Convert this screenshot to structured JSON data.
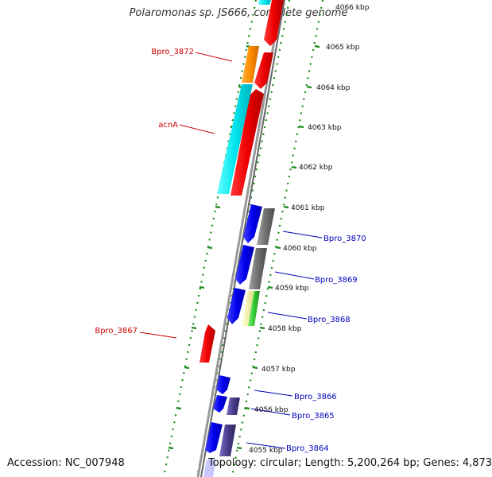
{
  "title": "Polaromonas sp. JS666, complete genome",
  "accession": "Accession: NC_007948",
  "summary": "Topology: circular; Length: 5,200,264 bp; Genes: 4,873",
  "ticks": [
    "4066 kbp",
    "4065 kbp",
    "4064 kbp",
    "4063 kbp",
    "4062 kbp",
    "4061 kbp",
    "4060 kbp",
    "4059 kbp",
    "4058 kbp",
    "4057 kbp",
    "4056 kbp",
    "4055 kbp"
  ],
  "gene_labels_left": [
    "Bpro_3872",
    "acnA",
    "Bpro_3867"
  ],
  "gene_labels_right": [
    "Bpro_3870",
    "Bpro_3869",
    "Bpro_3868",
    "Bpro_3866",
    "Bpro_3865",
    "Bpro_3864"
  ],
  "colors": {
    "left_label": "#cc0000",
    "right_label": "#0000bb",
    "red_gene": "#ee0000",
    "cyan_gene": "#00e5ee",
    "orange_gene": "#ff8c00",
    "blue_gene": "#0000ee",
    "gray_gene": "#707070",
    "slate_gene": "#483d8b",
    "green_gene": "#33cc33",
    "yellow_gene": "#eeee99",
    "backbone": "#888888",
    "dots": "#1a8a1a"
  }
}
